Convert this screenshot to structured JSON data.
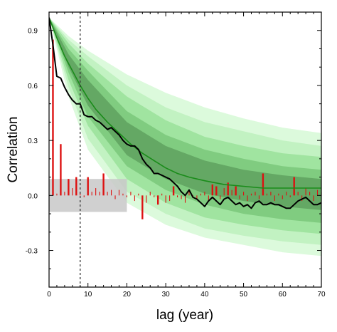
{
  "chart_data": {
    "type": "line",
    "title": "",
    "xlabel": "lag (year)",
    "ylabel": "Correlation",
    "xlim": [
      0,
      70
    ],
    "ylim": [
      -0.5,
      1.0
    ],
    "x_ticks": [
      0,
      10,
      20,
      30,
      40,
      50,
      60,
      70
    ],
    "x_tick_labels": [
      "0",
      "10",
      "20",
      "30",
      "40",
      "50",
      "60",
      "70"
    ],
    "y_ticks": [
      -0.3,
      0.0,
      0.3,
      0.6,
      0.9
    ],
    "y_tick_labels": [
      "-0.3",
      "0.0",
      "0.3",
      "0.6",
      "0.9"
    ],
    "grid": false,
    "legend": "none",
    "reference_line_x": 8,
    "significance_band": [
      -0.09,
      0.09
    ],
    "colors": {
      "band_outer": "#dcfadc",
      "band_2": "#c2f2c2",
      "band_3": "#a0e4a0",
      "band_4": "#80cc80",
      "band_inner": "#64a864",
      "fit_line": "#1a8c1a",
      "observed_line": "#000000",
      "bars": "#dd1111",
      "significance_band": "#c8c8c8"
    },
    "fit_curve": {
      "x": [
        0,
        2,
        4,
        6,
        8,
        10,
        12,
        15,
        18,
        21,
        24,
        27,
        30,
        33,
        36,
        40,
        45,
        50,
        55,
        60,
        65,
        70
      ],
      "values": [
        0.97,
        0.86,
        0.76,
        0.68,
        0.6,
        0.53,
        0.47,
        0.4,
        0.34,
        0.28,
        0.23,
        0.19,
        0.15,
        0.12,
        0.1,
        0.08,
        0.06,
        0.05,
        0.04,
        0.04,
        0.04,
        0.04
      ]
    },
    "envelope_bands": [
      {
        "name": "outer",
        "x": [
          0,
          5,
          10,
          20,
          30,
          40,
          50,
          60,
          70
        ],
        "lower": [
          0.97,
          0.54,
          0.25,
          -0.04,
          -0.16,
          -0.23,
          -0.27,
          -0.31,
          -0.33
        ],
        "upper": [
          0.97,
          0.87,
          0.79,
          0.66,
          0.56,
          0.48,
          0.42,
          0.37,
          0.34
        ]
      },
      {
        "name": "band-2",
        "x": [
          0,
          5,
          10,
          20,
          30,
          40,
          50,
          60,
          70
        ],
        "lower": [
          0.97,
          0.59,
          0.31,
          0.02,
          -0.1,
          -0.18,
          -0.22,
          -0.25,
          -0.27
        ],
        "upper": [
          0.97,
          0.85,
          0.76,
          0.6,
          0.48,
          0.4,
          0.35,
          0.3,
          0.27
        ]
      },
      {
        "name": "band-3",
        "x": [
          0,
          5,
          10,
          20,
          30,
          40,
          50,
          60,
          70
        ],
        "lower": [
          0.97,
          0.63,
          0.38,
          0.09,
          -0.04,
          -0.12,
          -0.16,
          -0.19,
          -0.21
        ],
        "upper": [
          0.97,
          0.83,
          0.72,
          0.54,
          0.41,
          0.32,
          0.27,
          0.23,
          0.21
        ]
      },
      {
        "name": "band-4",
        "x": [
          0,
          5,
          10,
          20,
          30,
          40,
          50,
          60,
          70
        ],
        "lower": [
          0.97,
          0.67,
          0.43,
          0.16,
          0.03,
          -0.05,
          -0.1,
          -0.13,
          -0.15
        ],
        "upper": [
          0.97,
          0.8,
          0.68,
          0.46,
          0.33,
          0.25,
          0.2,
          0.16,
          0.14
        ]
      },
      {
        "name": "inner",
        "x": [
          0,
          5,
          10,
          20,
          30,
          40,
          50,
          60,
          70
        ],
        "lower": [
          0.97,
          0.7,
          0.49,
          0.22,
          0.09,
          0.01,
          -0.03,
          -0.06,
          -0.08
        ],
        "upper": [
          0.97,
          0.77,
          0.63,
          0.4,
          0.27,
          0.19,
          0.14,
          0.11,
          0.09
        ]
      }
    ],
    "observed_curve": {
      "x": [
        0,
        1,
        2,
        3,
        4,
        5,
        6,
        7,
        8,
        9,
        10,
        11,
        12,
        13,
        14,
        15,
        16,
        17,
        18,
        19,
        20,
        21,
        22,
        23,
        24,
        25,
        26,
        27,
        28,
        29,
        30,
        31,
        32,
        33,
        34,
        35,
        36,
        37,
        38,
        39,
        40,
        41,
        42,
        43,
        44,
        45,
        46,
        47,
        48,
        49,
        50,
        51,
        52,
        53,
        54,
        55,
        56,
        57,
        58,
        59,
        60,
        61,
        62,
        63,
        64,
        65,
        66,
        67,
        68,
        69,
        70
      ],
      "values": [
        0.97,
        0.82,
        0.65,
        0.64,
        0.59,
        0.55,
        0.52,
        0.5,
        0.5,
        0.44,
        0.43,
        0.43,
        0.41,
        0.4,
        0.38,
        0.36,
        0.37,
        0.35,
        0.33,
        0.3,
        0.28,
        0.27,
        0.27,
        0.25,
        0.2,
        0.17,
        0.15,
        0.12,
        0.12,
        0.11,
        0.1,
        0.09,
        0.07,
        0.05,
        0.02,
        0.0,
        0.03,
        -0.01,
        -0.02,
        -0.04,
        -0.06,
        -0.03,
        -0.01,
        -0.03,
        -0.05,
        -0.02,
        -0.01,
        -0.03,
        -0.05,
        -0.04,
        -0.06,
        -0.05,
        -0.07,
        -0.04,
        -0.03,
        -0.05,
        -0.05,
        -0.04,
        -0.05,
        -0.05,
        -0.06,
        -0.07,
        -0.07,
        -0.05,
        -0.03,
        -0.02,
        -0.01,
        -0.03,
        -0.05,
        -0.05,
        -0.04
      ]
    },
    "bars": {
      "x": [
        1,
        2,
        3,
        4,
        5,
        6,
        7,
        8,
        9,
        10,
        11,
        12,
        13,
        14,
        15,
        16,
        17,
        18,
        19,
        20,
        21,
        22,
        23,
        24,
        25,
        26,
        27,
        28,
        29,
        30,
        31,
        32,
        33,
        34,
        35,
        36,
        37,
        38,
        39,
        40,
        41,
        42,
        43,
        44,
        45,
        46,
        47,
        48,
        49,
        50,
        51,
        52,
        53,
        54,
        55,
        56,
        57,
        58,
        59,
        60,
        61,
        62,
        63,
        64,
        65,
        66,
        67,
        68,
        69,
        70
      ],
      "values": [
        0.85,
        0.01,
        0.28,
        0.02,
        0.09,
        0.04,
        0.1,
        0.01,
        -0.01,
        0.1,
        0.02,
        0.04,
        0.02,
        0.12,
        0.02,
        0.03,
        -0.02,
        0.03,
        0.01,
        -0.01,
        0.02,
        -0.03,
        0.01,
        -0.13,
        -0.04,
        0.02,
        -0.01,
        -0.05,
        0.01,
        -0.04,
        -0.03,
        0.05,
        -0.01,
        -0.02,
        -0.04,
        0.03,
        -0.01,
        -0.02,
        0.01,
        0.02,
        -0.03,
        0.06,
        0.05,
        -0.02,
        0.04,
        0.07,
        0.03,
        0.05,
        -0.02,
        0.02,
        -0.03,
        0.01,
        0.02,
        -0.02,
        0.12,
        0.01,
        0.02,
        -0.03,
        0.01,
        -0.02,
        0.02,
        -0.01,
        0.1,
        0.02,
        -0.03,
        0.04,
        0.02,
        -0.03,
        0.03,
        0.02
      ]
    }
  }
}
